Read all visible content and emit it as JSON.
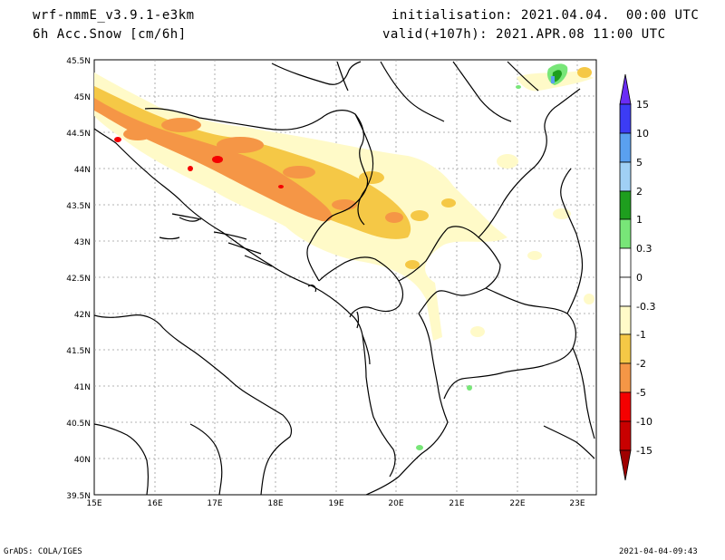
{
  "header": {
    "model": "wrf-nmmE_v3.9.1-e3km",
    "variable": "6h Acc.Snow [cm/6h]",
    "initialisation": "initialisation: 2021.04.04.  00:00 UTC",
    "valid": "valid(+107h): 2021.APR.08 11:00 UTC"
  },
  "axes": {
    "lon_labels": [
      "15E",
      "16E",
      "17E",
      "18E",
      "19E",
      "20E",
      "21E",
      "22E",
      "23E"
    ],
    "lat_labels": [
      "45.5N",
      "45N",
      "44.5N",
      "44N",
      "43.5N",
      "43N",
      "42.5N",
      "42N",
      "41.5N",
      "41N",
      "40.5N",
      "40N",
      "39.5N"
    ],
    "lon_range": [
      15,
      23.3
    ],
    "lat_range": [
      39.5,
      45.5
    ],
    "grid": true
  },
  "colorbar": {
    "labels": [
      "15",
      "10",
      "5",
      "2",
      "1",
      "0.3",
      "0",
      "-0.3",
      "-1",
      "-2",
      "-5",
      "-10",
      "-15"
    ],
    "colors": [
      "#6a2cf5",
      "#3c3cf5",
      "#5aa0f0",
      "#a0d0f5",
      "#1e9e1e",
      "#78e678",
      "#ffffff",
      "#ffffff",
      "#fffac8",
      "#f5c846",
      "#f59646",
      "#f50000",
      "#c80000",
      "#a00000"
    ]
  },
  "footer": {
    "left": "GrADS: COLA/IGES",
    "right": "2021-04-04-09:43"
  }
}
